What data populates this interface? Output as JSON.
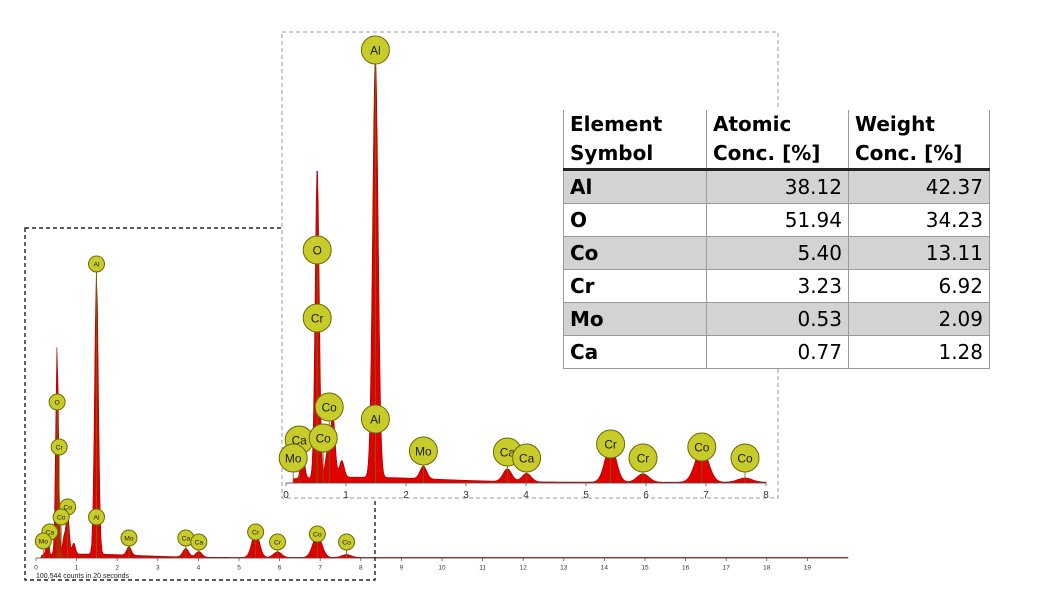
{
  "table": {
    "header": {
      "col1": [
        "Element",
        "Symbol"
      ],
      "col2": [
        "Atomic",
        "Conc. [%]"
      ],
      "col3": [
        "Weight",
        "Conc. [%]"
      ]
    },
    "rows": [
      {
        "symbol": "Al",
        "atomic": "38.12",
        "weight": "42.37"
      },
      {
        "symbol": "O",
        "atomic": "51.94",
        "weight": "34.23"
      },
      {
        "symbol": "Co",
        "atomic": "5.40",
        "weight": "13.11"
      },
      {
        "symbol": "Cr",
        "atomic": "3.23",
        "weight": "6.92"
      },
      {
        "symbol": "Mo",
        "atomic": "0.53",
        "weight": "2.09"
      },
      {
        "symbol": "Ca",
        "atomic": "0.77",
        "weight": "1.28"
      }
    ]
  },
  "chart_data": [
    {
      "type": "line",
      "title": "",
      "caption": "100,544 counts in 20 seconds",
      "xlabel": "",
      "ylabel": "",
      "xlim": [
        0,
        20
      ],
      "ylim": [
        0,
        1
      ],
      "x_ticks": [
        "0",
        "1",
        "2",
        "3",
        "4",
        "5",
        "6",
        "7",
        "8",
        "9",
        "10",
        "11",
        "12",
        "13",
        "14",
        "15",
        "16",
        "17",
        "18",
        "19"
      ],
      "series": [
        {
          "peaks_x": [
            0.28,
            0.52,
            0.69,
            0.78,
            0.93,
            1.49,
            2.29,
            3.69,
            4.01,
            5.41,
            5.95,
            6.93,
            7.65
          ],
          "peaks_y": [
            0.06,
            0.74,
            0.06,
            0.15,
            0.04,
            1.0,
            0.03,
            0.03,
            0.02,
            0.09,
            0.02,
            0.08,
            0.01
          ]
        }
      ],
      "labels": [
        {
          "text": "Al",
          "x": 1.49
        },
        {
          "text": "O",
          "x": 0.52
        },
        {
          "text": "Cr",
          "x": 0.57
        },
        {
          "text": "Co",
          "x": 0.78
        },
        {
          "text": "Ca",
          "x": 0.34
        },
        {
          "text": "Co",
          "x": 0.62
        },
        {
          "text": "Mo",
          "x": 0.18
        },
        {
          "text": "Al",
          "x": 1.49
        },
        {
          "text": "Mo",
          "x": 2.29
        },
        {
          "text": "Ca",
          "x": 3.69
        },
        {
          "text": "Ca",
          "x": 4.01
        },
        {
          "text": "Cr",
          "x": 5.41
        },
        {
          "text": "Cr",
          "x": 5.95
        },
        {
          "text": "Co",
          "x": 6.93
        },
        {
          "text": "Co",
          "x": 7.65
        }
      ],
      "colors": {
        "fill": "#e00000",
        "label": "#c7cc2a"
      }
    },
    {
      "type": "line",
      "title": "",
      "xlabel": "",
      "ylabel": "",
      "xlim": [
        0,
        8
      ],
      "ylim": [
        0,
        1
      ],
      "x_ticks": [
        "0",
        "1",
        "2",
        "3",
        "4",
        "5",
        "6",
        "7",
        "8"
      ],
      "series": [
        {
          "peaks_x": [
            0.28,
            0.52,
            0.69,
            0.78,
            0.93,
            1.49,
            2.29,
            3.69,
            4.01,
            5.41,
            5.95,
            6.93,
            7.65
          ],
          "peaks_y": [
            0.06,
            0.74,
            0.06,
            0.15,
            0.04,
            1.0,
            0.03,
            0.03,
            0.02,
            0.09,
            0.02,
            0.08,
            0.01
          ]
        }
      ],
      "labels": [
        {
          "text": "Al",
          "x": 1.49
        },
        {
          "text": "O",
          "x": 0.52
        },
        {
          "text": "Cr",
          "x": 0.52
        },
        {
          "text": "Co",
          "x": 0.72
        },
        {
          "text": "Ca",
          "x": 0.22
        },
        {
          "text": "Co",
          "x": 0.62
        },
        {
          "text": "Mo",
          "x": 0.12
        },
        {
          "text": "Al",
          "x": 1.49
        },
        {
          "text": "Mo",
          "x": 2.29
        },
        {
          "text": "Ca",
          "x": 3.69
        },
        {
          "text": "Ca",
          "x": 4.01
        },
        {
          "text": "Cr",
          "x": 5.41
        },
        {
          "text": "Cr",
          "x": 5.95
        },
        {
          "text": "Co",
          "x": 6.93
        },
        {
          "text": "Co",
          "x": 7.65
        }
      ],
      "colors": {
        "fill": "#e00000",
        "label": "#c7cc2a"
      }
    }
  ]
}
